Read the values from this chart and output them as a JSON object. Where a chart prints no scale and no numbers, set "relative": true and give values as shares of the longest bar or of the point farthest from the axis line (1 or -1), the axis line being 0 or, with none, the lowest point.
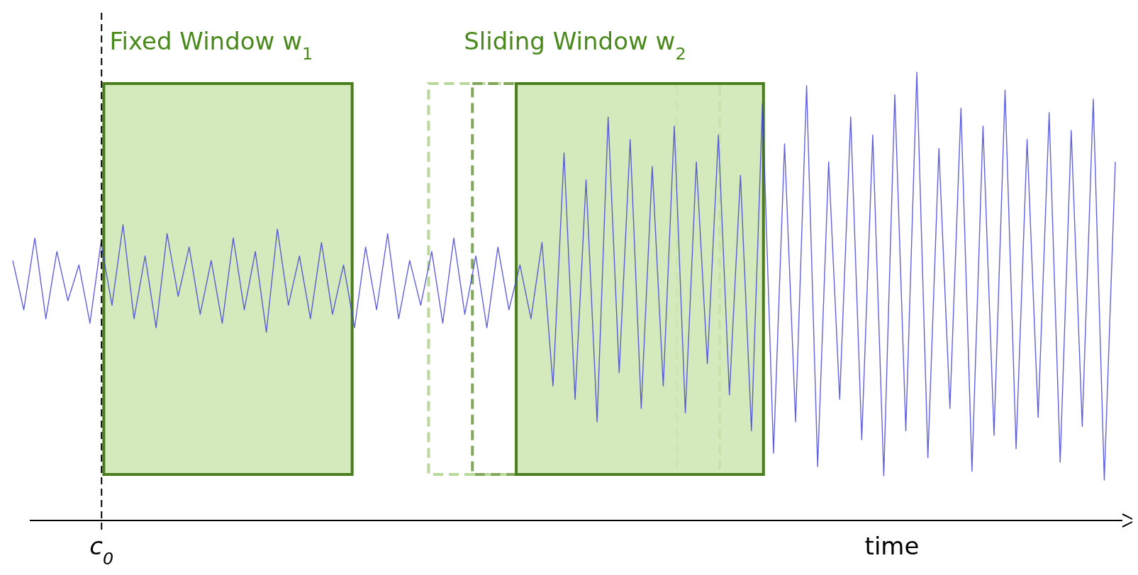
{
  "chart_data": {
    "type": "line",
    "relative": true,
    "xlabel": "time",
    "categories": [
      null,
      null,
      null,
      null,
      null,
      null,
      null,
      null,
      null,
      null,
      null,
      null,
      null,
      null,
      null,
      null,
      null,
      null,
      null,
      null,
      null,
      null,
      null,
      null,
      null,
      null,
      null,
      null,
      null,
      null,
      null,
      null,
      null,
      null,
      null,
      null,
      null,
      null,
      null,
      null,
      null,
      null,
      null,
      null,
      null,
      null,
      null,
      null,
      null,
      null,
      null,
      null,
      null,
      null,
      null,
      null,
      null,
      null,
      null,
      null,
      null,
      null,
      null,
      null,
      null,
      null,
      null,
      null,
      null,
      null,
      null,
      null,
      null,
      null,
      null,
      null,
      null,
      null,
      null,
      null,
      null,
      null,
      null,
      null,
      null,
      null,
      null,
      null,
      null,
      null,
      null,
      null,
      null,
      null,
      null,
      null,
      null,
      null,
      null,
      null,
      null
    ],
    "series": [
      {
        "color": "#3a3ad8",
        "values": [
          0.58,
          0.47,
          0.63,
          0.45,
          0.6,
          0.49,
          0.57,
          0.44,
          0.62,
          0.48,
          0.66,
          0.45,
          0.59,
          0.43,
          0.64,
          0.5,
          0.61,
          0.46,
          0.58,
          0.44,
          0.63,
          0.47,
          0.6,
          0.42,
          0.65,
          0.48,
          0.59,
          0.45,
          0.62,
          0.46,
          0.57,
          0.43,
          0.61,
          0.47,
          0.64,
          0.45,
          0.58,
          0.48,
          0.6,
          0.44,
          0.63,
          0.46,
          0.59,
          0.43,
          0.61,
          0.47,
          0.57,
          0.45,
          0.62,
          0.3,
          0.82,
          0.27,
          0.76,
          0.22,
          0.9,
          0.33,
          0.85,
          0.25,
          0.79,
          0.3,
          0.88,
          0.24,
          0.8,
          0.35,
          0.86,
          0.28,
          0.77,
          0.2,
          0.93,
          0.15,
          0.84,
          0.22,
          0.97,
          0.12,
          0.8,
          0.27,
          0.9,
          0.18,
          0.86,
          0.1,
          0.95,
          0.2,
          1.0,
          0.14,
          0.83,
          0.25,
          0.92,
          0.11,
          0.88,
          0.19,
          0.96,
          0.16,
          0.85,
          0.23,
          0.91,
          0.13,
          0.87,
          0.21,
          0.94,
          0.09,
          0.8
        ]
      }
    ],
    "annotations": [
      "Fixed Window w$_{1}$",
      "Sliding Window w$_{2}$",
      "c$_{0}$"
    ]
  }
}
